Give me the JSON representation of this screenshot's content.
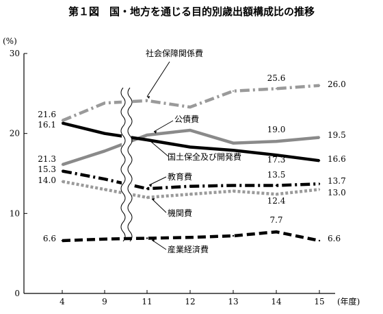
{
  "page_title": "第１図　国・地方を通じる目的別歳出額構成比の推移",
  "chart_data": {
    "type": "line",
    "title": "第１図　国・地方を通じる目的別歳出額構成比の推移",
    "ylabel": "(%)",
    "xlabel": "(年度)",
    "ylim": [
      0,
      30
    ],
    "yticks": [
      "0",
      "10",
      "20",
      "30"
    ],
    "categories": [
      "4",
      "9",
      "11",
      "12",
      "13",
      "14",
      "15"
    ],
    "axis_break": "between 9 and 11",
    "grid": false,
    "series": [
      {
        "name": "社会保障関係費",
        "values": [
          21.6,
          23.8,
          24.1,
          23.3,
          25.3,
          25.6,
          26.0
        ],
        "labels": {
          "0": "21.6",
          "5": "25.6",
          "6": "26.0"
        },
        "color": "#9a9a9a",
        "style": "dashdot"
      },
      {
        "name": "公債費",
        "values": [
          16.1,
          17.8,
          19.8,
          20.4,
          18.8,
          19.0,
          19.5
        ],
        "labels": {
          "0": "16.1",
          "5": "19.0",
          "6": "19.5"
        },
        "color": "#8a8a8a",
        "style": "solid"
      },
      {
        "name": "国土保全及び開発費",
        "values": [
          21.3,
          20.0,
          19.2,
          18.3,
          17.9,
          17.3,
          16.6
        ],
        "labels": {
          "0": "21.3",
          "5": "17.3",
          "6": "16.6"
        },
        "color": "#000000",
        "style": "solid"
      },
      {
        "name": "教育費",
        "values": [
          15.3,
          14.3,
          13.1,
          13.4,
          13.5,
          13.5,
          13.7
        ],
        "labels": {
          "0": "15.3",
          "5": "13.5",
          "6": "13.7"
        },
        "color": "#000000",
        "style": "dashdot"
      },
      {
        "name": "機関費",
        "values": [
          14.0,
          13.0,
          12.0,
          12.4,
          12.8,
          12.4,
          13.0
        ],
        "labels": {
          "0": "14.0",
          "5": "12.4",
          "6": "13.0"
        },
        "color": "#9a9a9a",
        "style": "dotted"
      },
      {
        "name": "産業経済費",
        "values": [
          6.6,
          6.8,
          6.9,
          7.0,
          7.2,
          7.7,
          6.6
        ],
        "labels": {
          "0": "6.6",
          "5": "7.7",
          "6": "6.6"
        },
        "color": "#000000",
        "style": "dashed"
      }
    ]
  }
}
